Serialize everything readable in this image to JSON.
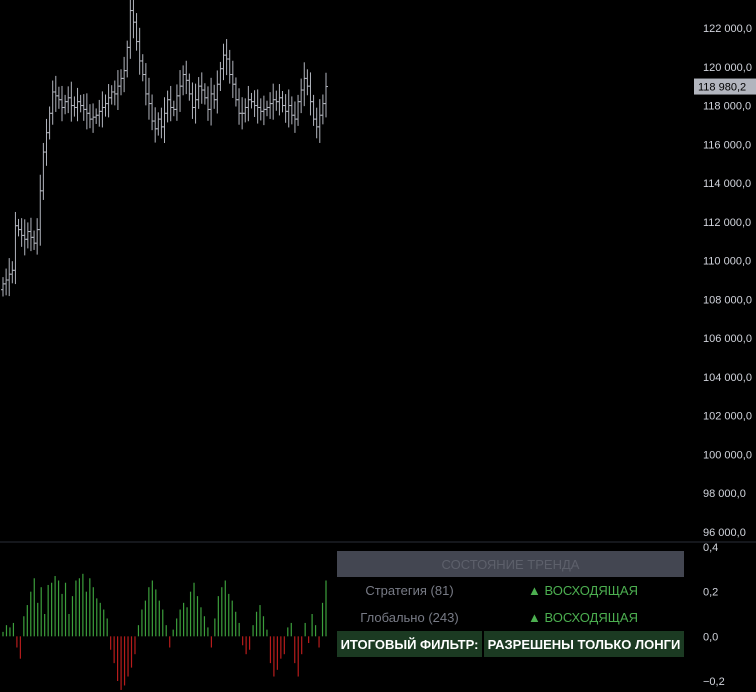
{
  "chart_data": [
    {
      "type": "ohlc",
      "title": "",
      "ylim": [
        96000,
        123000
      ],
      "y_ticks": [
        "96 000,0",
        "98 000,0",
        "100 000,0",
        "102 000,0",
        "104 000,0",
        "106 000,0",
        "108 000,0",
        "110 000,0",
        "112 000,0",
        "114 000,0",
        "116 000,0",
        "118 000,0",
        "120 000,0",
        "122 000,0"
      ],
      "last_price": "118 980,2",
      "last_price_value": 118980.2,
      "closes": [
        108800,
        109000,
        109300,
        109500,
        111800,
        111600,
        111300,
        111100,
        111500,
        111200,
        110900,
        111600,
        113600,
        115600,
        116600,
        117600,
        118700,
        118500,
        118300,
        117900,
        118200,
        118400,
        118000,
        117900,
        118200,
        118000,
        117800,
        117600,
        117300,
        117400,
        117500,
        117700,
        117900,
        118100,
        118400,
        118700,
        118600,
        119000,
        119400,
        119800,
        121000,
        122900,
        122300,
        121300,
        120300,
        119600,
        118600,
        118100,
        117200,
        116800,
        117300,
        116900,
        117600,
        118300,
        117900,
        117800,
        118500,
        119000,
        119600,
        119300,
        118600,
        117900,
        118300,
        119000,
        118800,
        118400,
        117800,
        118600,
        118300,
        119100,
        119900,
        120600,
        120400,
        119600,
        119100,
        118300,
        117600,
        117600,
        117900,
        118300,
        118200,
        118000,
        117900,
        117700,
        117800,
        117900,
        118100,
        118300,
        118200,
        118400,
        118000,
        117700,
        118000,
        117500,
        117300,
        118200,
        118800,
        119400,
        119000,
        118200,
        117300,
        116900,
        117500,
        118100,
        118980
      ],
      "color": "#b2b5be"
    },
    {
      "type": "bar",
      "title": "",
      "ylim": [
        -0.2,
        0.4
      ],
      "y_ticks": [
        "0,4",
        "0,2",
        "0,0",
        "−0,2"
      ],
      "values": [
        0.02,
        0.05,
        0.04,
        0.06,
        -0.05,
        -0.1,
        0.09,
        0.14,
        0.2,
        0.26,
        0.15,
        0.22,
        0.1,
        0.23,
        0.24,
        0.27,
        0.25,
        0.19,
        0.24,
        0.1,
        0.18,
        0.25,
        0.26,
        0.28,
        0.2,
        0.26,
        0.22,
        0.17,
        0.15,
        0.12,
        0.08,
        -0.06,
        -0.12,
        -0.2,
        -0.24,
        -0.22,
        -0.18,
        -0.14,
        -0.08,
        0.05,
        0.12,
        0.16,
        0.22,
        0.25,
        0.21,
        0.16,
        0.12,
        0.05,
        -0.05,
        0.03,
        0.08,
        0.12,
        0.15,
        0.13,
        0.2,
        0.24,
        0.18,
        0.13,
        0.09,
        0.04,
        -0.05,
        0.08,
        0.18,
        0.22,
        0.25,
        0.19,
        0.16,
        0.11,
        0.06,
        -0.04,
        -0.08,
        -0.06,
        0.05,
        0.11,
        0.14,
        0.09,
        0.03,
        -0.12,
        -0.18,
        -0.15,
        -0.1,
        -0.08,
        0.04,
        0.06,
        -0.12,
        -0.18,
        -0.08,
        0.06,
        -0.03,
        0.1,
        0.05,
        -0.05,
        0.15,
        0.25
      ],
      "positive_color": "#3c9f3c",
      "negative_color": "#b71c1c"
    }
  ],
  "panel": {
    "header": "СОСТОЯНИЕ ТРЕНДА",
    "rows": [
      {
        "label": "Стратегия (81)",
        "value": "▲ ВОСХОДЯЩАЯ"
      },
      {
        "label": "Глобально (243)",
        "value": "▲ ВОСХОДЯЩАЯ"
      }
    ],
    "final_label": "ИТОГОВЫЙ ФИЛЬТР:",
    "final_value": "РАЗРЕШЕНЫ ТОЛЬКО ЛОНГИ"
  },
  "colors": {
    "background": "#000000",
    "axis_text": "#d1d4dc",
    "price_tag_bg": "#b2b5be",
    "up_text": "#4caf50",
    "final_bg": "#1b3a22",
    "header_bg": "#434651"
  }
}
